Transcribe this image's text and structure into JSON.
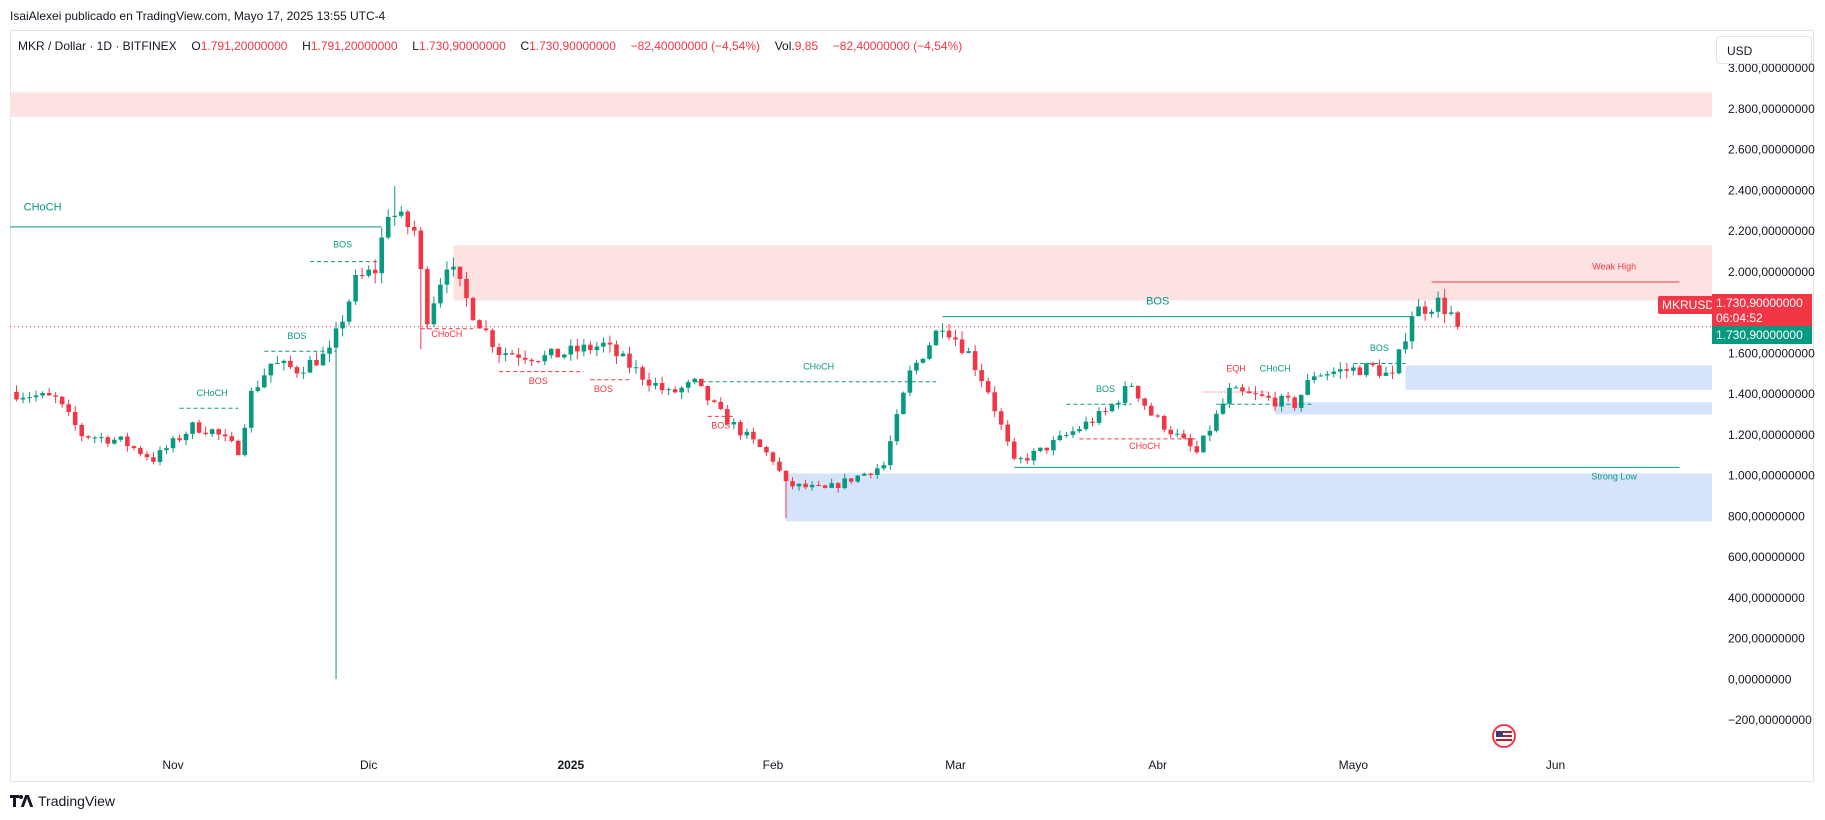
{
  "published_line": "IsaiAlexei publicado en TradingView.com, Mayo 17, 2025 13:55 UTC-4",
  "legend": {
    "symbol": "MKR / Dollar · 1D · BITFINEX",
    "o_label": "O",
    "o_value": "1.791,20000000",
    "h_label": "H",
    "h_value": "1.791,20000000",
    "l_label": "L",
    "l_value": "1.730,90000000",
    "c_label": "C",
    "c_value": "1.730,90000000",
    "change": "−82,40000000 (−4,54%)",
    "vol_label": "Vol.",
    "vol_value": "9,85",
    "vol_change": "−82,40000000 (−4,54%)"
  },
  "currency_button": "USD",
  "price_tags": {
    "symbol": "MKRUSD",
    "price": "1.730,90000000",
    "countdown": "06:04:52",
    "price2": "1.730,90000000"
  },
  "brand": "TradingView",
  "colors": {
    "up": "#089981",
    "down": "#f23645",
    "supply_zone": "#fde2e2",
    "demand_zone": "#d6e4fb",
    "bullish_structure": "#089981",
    "bearish_structure": "#f23645"
  },
  "chart_data": {
    "type": "candlestick",
    "y_axis": {
      "range": [
        -250,
        3100
      ],
      "ticks": [
        {
          "value": 3000,
          "label": "3.000,00000000"
        },
        {
          "value": 2800,
          "label": "2.800,00000000"
        },
        {
          "value": 2600,
          "label": "2.600,00000000"
        },
        {
          "value": 2400,
          "label": "2.400,00000000"
        },
        {
          "value": 2200,
          "label": "2.200,00000000"
        },
        {
          "value": 2000,
          "label": "2.000,00000000"
        },
        {
          "value": 1600,
          "label": "1.600,00000000"
        },
        {
          "value": 1400,
          "label": "1.400,00000000"
        },
        {
          "value": 1200,
          "label": "1.200,00000000"
        },
        {
          "value": 1000,
          "label": "1.000,00000000"
        },
        {
          "value": 800,
          "label": "800,00000000"
        },
        {
          "value": 600,
          "label": "600,00000000"
        },
        {
          "value": 400,
          "label": "400,00000000"
        },
        {
          "value": 200,
          "label": "200,00000000"
        },
        {
          "value": 0,
          "label": "0,00000000"
        },
        {
          "value": -200,
          "label": "−200,00000000"
        }
      ]
    },
    "x_axis": {
      "start": "2024-10-07",
      "end": "2025-06-25",
      "ticks": [
        {
          "date": "2024-11-01",
          "label": "Nov"
        },
        {
          "date": "2024-12-01",
          "label": "Dic"
        },
        {
          "date": "2025-01-01",
          "label": "2025"
        },
        {
          "date": "2025-02-01",
          "label": "Feb"
        },
        {
          "date": "2025-03-01",
          "label": "Mar"
        },
        {
          "date": "2025-04-01",
          "label": "Abr"
        },
        {
          "date": "2025-05-01",
          "label": "Mayo"
        },
        {
          "date": "2025-06-01",
          "label": "Jun"
        }
      ]
    },
    "grid": false,
    "last_price": 1730.9,
    "waypoints": [
      {
        "date": "2024-10-07",
        "price": 1410
      },
      {
        "date": "2024-10-14",
        "price": 1375
      },
      {
        "date": "2024-10-18",
        "price": 1200
      },
      {
        "date": "2024-10-24",
        "price": 1170
      },
      {
        "date": "2024-10-29",
        "price": 1080
      },
      {
        "date": "2024-11-04",
        "price": 1240
      },
      {
        "date": "2024-11-07",
        "price": 1220
      },
      {
        "date": "2024-11-11",
        "price": 1125
      },
      {
        "date": "2024-11-13",
        "price": 1400
      },
      {
        "date": "2024-11-16",
        "price": 1550
      },
      {
        "date": "2024-11-20",
        "price": 1520
      },
      {
        "date": "2024-11-25",
        "price": 1600
      },
      {
        "date": "2024-11-29",
        "price": 1950
      },
      {
        "date": "2024-12-02",
        "price": 2010
      },
      {
        "date": "2024-12-04",
        "price": 2300
      },
      {
        "date": "2024-12-08",
        "price": 2200
      },
      {
        "date": "2024-12-10",
        "price": 1780
      },
      {
        "date": "2024-12-13",
        "price": 2050
      },
      {
        "date": "2024-12-17",
        "price": 1800
      },
      {
        "date": "2024-12-21",
        "price": 1610
      },
      {
        "date": "2024-12-28",
        "price": 1580
      },
      {
        "date": "2025-01-06",
        "price": 1640
      },
      {
        "date": "2025-01-12",
        "price": 1490
      },
      {
        "date": "2025-01-16",
        "price": 1400
      },
      {
        "date": "2025-01-20",
        "price": 1450
      },
      {
        "date": "2025-01-24",
        "price": 1300
      },
      {
        "date": "2025-02-01",
        "price": 1080
      },
      {
        "date": "2025-02-03",
        "price": 955
      },
      {
        "date": "2025-02-09",
        "price": 930
      },
      {
        "date": "2025-02-18",
        "price": 1050
      },
      {
        "date": "2025-02-22",
        "price": 1500
      },
      {
        "date": "2025-02-27",
        "price": 1750
      },
      {
        "date": "2025-03-03",
        "price": 1600
      },
      {
        "date": "2025-03-06",
        "price": 1420
      },
      {
        "date": "2025-03-10",
        "price": 1060
      },
      {
        "date": "2025-03-14",
        "price": 1120
      },
      {
        "date": "2025-03-24",
        "price": 1310
      },
      {
        "date": "2025-03-28",
        "price": 1450
      },
      {
        "date": "2025-03-31",
        "price": 1300
      },
      {
        "date": "2025-04-07",
        "price": 1110
      },
      {
        "date": "2025-04-12",
        "price": 1410
      },
      {
        "date": "2025-04-22",
        "price": 1350
      },
      {
        "date": "2025-04-25",
        "price": 1500
      },
      {
        "date": "2025-05-04",
        "price": 1530
      },
      {
        "date": "2025-05-07",
        "price": 1480
      },
      {
        "date": "2025-05-10",
        "price": 1800
      },
      {
        "date": "2025-05-14",
        "price": 1850
      },
      {
        "date": "2025-05-16",
        "price": 1791
      },
      {
        "date": "2025-05-17",
        "price": 1730.9
      }
    ],
    "spikes": [
      {
        "date": "2024-11-26",
        "low": 0
      },
      {
        "date": "2024-12-05",
        "high": 2420
      },
      {
        "date": "2024-12-09",
        "low": 1620
      },
      {
        "date": "2025-02-03",
        "low": 790
      }
    ],
    "zones": [
      {
        "kind": "supply",
        "from": "2024-10-07",
        "to": "2025-06-30",
        "top": 2880,
        "bottom": 2760
      },
      {
        "kind": "supply",
        "from": "2024-12-14",
        "to": "2025-06-30",
        "top": 2130,
        "bottom": 1860
      },
      {
        "kind": "demand",
        "from": "2025-05-09",
        "to": "2025-06-30",
        "top": 1540,
        "bottom": 1420
      },
      {
        "kind": "demand",
        "from": "2025-04-19",
        "to": "2025-06-30",
        "top": 1360,
        "bottom": 1300
      },
      {
        "kind": "demand",
        "from": "2025-02-03",
        "to": "2025-06-30",
        "top": 1010,
        "bottom": 775
      }
    ],
    "lines": [
      {
        "from": "2024-10-07",
        "to": "2024-12-03",
        "price": 2220,
        "style": "solid",
        "side": "bull"
      },
      {
        "from": "2025-02-27",
        "to": "2025-05-10",
        "price": 1780,
        "style": "solid",
        "side": "bull"
      },
      {
        "from": "2025-03-10",
        "to": "2025-06-20",
        "price": 1040,
        "style": "solid",
        "side": "bull"
      },
      {
        "from": "2025-05-13",
        "to": "2025-06-20",
        "price": 1950,
        "style": "solid",
        "side": "bear"
      },
      {
        "from": "2024-11-22",
        "to": "2024-12-03",
        "price": 2050,
        "style": "dashed",
        "side": "bull"
      },
      {
        "from": "2024-11-15",
        "to": "2024-11-26",
        "price": 1610,
        "style": "dashed",
        "side": "bull"
      },
      {
        "from": "2024-11-02",
        "to": "2024-11-11",
        "price": 1330,
        "style": "dashed",
        "side": "bull"
      },
      {
        "from": "2025-01-20",
        "to": "2025-02-26",
        "price": 1460,
        "style": "dashed",
        "side": "bull"
      },
      {
        "from": "2025-03-18",
        "to": "2025-03-28",
        "price": 1350,
        "style": "dashed",
        "side": "bull"
      },
      {
        "from": "2025-04-10",
        "to": "2025-04-25",
        "price": 1350,
        "style": "dashed",
        "side": "bull"
      },
      {
        "from": "2025-05-01",
        "to": "2025-05-09",
        "price": 1550,
        "style": "dashed",
        "side": "bull"
      },
      {
        "from": "2024-12-09",
        "to": "2024-12-17",
        "price": 1720,
        "style": "dashed",
        "side": "bear"
      },
      {
        "from": "2024-12-21",
        "to": "2025-01-03",
        "price": 1510,
        "style": "dashed",
        "side": "bear"
      },
      {
        "from": "2025-01-04",
        "to": "2025-01-10",
        "price": 1470,
        "style": "dashed",
        "side": "bear"
      },
      {
        "from": "2025-01-22",
        "to": "2025-01-26",
        "price": 1290,
        "style": "dashed",
        "side": "bear"
      },
      {
        "from": "2025-03-20",
        "to": "2025-04-07",
        "price": 1180,
        "style": "dashed",
        "side": "bear"
      },
      {
        "from": "2025-04-08",
        "to": "2025-04-18",
        "price": 1410,
        "style": "dotted",
        "side": "bear"
      }
    ],
    "annotations": [
      {
        "text": "CHoCH",
        "date": "2024-10-12",
        "price": 2300,
        "side": "bull",
        "big": true
      },
      {
        "text": "BOS",
        "date": "2024-11-27",
        "price": 2120,
        "side": "bull"
      },
      {
        "text": "BOS",
        "date": "2024-11-20",
        "price": 1670,
        "side": "bull"
      },
      {
        "text": "CHoCH",
        "date": "2024-11-07",
        "price": 1390,
        "side": "bull"
      },
      {
        "text": "CHoCH",
        "date": "2024-12-13",
        "price": 1680,
        "side": "bear"
      },
      {
        "text": "BOS",
        "date": "2024-12-27",
        "price": 1450,
        "side": "bear"
      },
      {
        "text": "BOS",
        "date": "2025-01-06",
        "price": 1410,
        "side": "bear"
      },
      {
        "text": "BOS",
        "date": "2025-01-24",
        "price": 1230,
        "side": "bear"
      },
      {
        "text": "CHoCH",
        "date": "2025-02-08",
        "price": 1520,
        "side": "bull"
      },
      {
        "text": "BOS",
        "date": "2025-04-01",
        "price": 1840,
        "side": "bull",
        "big": true
      },
      {
        "text": "BOS",
        "date": "2025-03-24",
        "price": 1410,
        "side": "bull"
      },
      {
        "text": "CHoCH",
        "date": "2025-03-30",
        "price": 1130,
        "side": "bear"
      },
      {
        "text": "EQH",
        "date": "2025-04-13",
        "price": 1510,
        "side": "bear"
      },
      {
        "text": "CHoCH",
        "date": "2025-04-19",
        "price": 1510,
        "side": "bull"
      },
      {
        "text": "BOS",
        "date": "2025-05-05",
        "price": 1610,
        "side": "bull"
      },
      {
        "text": "Weak High",
        "date": "2025-06-10",
        "price": 2010,
        "side": "bear"
      },
      {
        "text": "Strong Low",
        "date": "2025-06-10",
        "price": 980,
        "side": "bull"
      }
    ]
  }
}
